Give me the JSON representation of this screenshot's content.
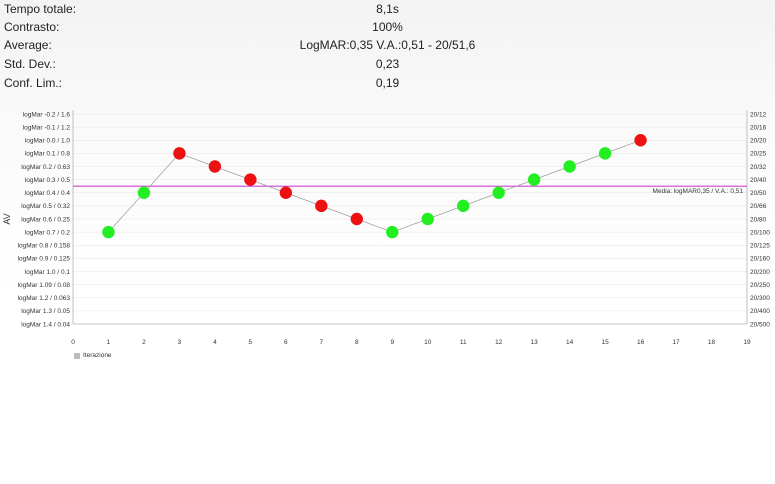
{
  "stats": [
    {
      "label": "Tempo totale:",
      "value": "8,1s"
    },
    {
      "label": "Contrasto:",
      "value": "100%"
    },
    {
      "label": "Average:",
      "value": "LogMAR:0,35  V.A.:0,51  - 20/51,6"
    },
    {
      "label": "Std. Dev.:",
      "value": "0,23"
    },
    {
      "label": "Conf. Lim.:",
      "value": "0,19"
    }
  ],
  "colors": {
    "correct": "#22ee22",
    "wrong": "#ee1111",
    "mean_line": "#cc44cc",
    "connector": "#9e9e9e",
    "grid": "#e4e4e4"
  },
  "chart_data": {
    "type": "scatter",
    "ylabel": "AV",
    "xlim": [
      0,
      19
    ],
    "ylim": [
      -0.2,
      1.4
    ],
    "y_reversed": true,
    "x_ticks": [
      0,
      1,
      2,
      3,
      4,
      5,
      6,
      7,
      8,
      9,
      10,
      11,
      12,
      13,
      14,
      15,
      16,
      17,
      18,
      19
    ],
    "left_ticks": [
      {
        "v": -0.2,
        "label": "logMar -0.2 / 1.6"
      },
      {
        "v": -0.1,
        "label": "logMar -0.1 / 1.2"
      },
      {
        "v": 0.0,
        "label": "logMar 0.0 / 1.0"
      },
      {
        "v": 0.1,
        "label": "logMar 0.1 / 0.8"
      },
      {
        "v": 0.2,
        "label": "logMar 0.2 / 0.63"
      },
      {
        "v": 0.3,
        "label": "logMar 0.3 / 0.5"
      },
      {
        "v": 0.4,
        "label": "logMar 0.4 / 0.4"
      },
      {
        "v": 0.5,
        "label": "logMar 0.5 / 0.32"
      },
      {
        "v": 0.6,
        "label": "logMar 0.6 / 0.25"
      },
      {
        "v": 0.7,
        "label": "logMar 0.7 / 0.2"
      },
      {
        "v": 0.8,
        "label": "logMar 0.8 / 0.158"
      },
      {
        "v": 0.9,
        "label": "logMar 0.9 / 0.125"
      },
      {
        "v": 1.0,
        "label": "logMar 1.0 / 0.1"
      },
      {
        "v": 1.1,
        "label": "logMar 1.09 / 0.08"
      },
      {
        "v": 1.2,
        "label": "logMar 1.2 / 0.063"
      },
      {
        "v": 1.3,
        "label": "logMar 1.3 / 0.05"
      },
      {
        "v": 1.4,
        "label": "logMar 1.4 / 0.04"
      }
    ],
    "right_ticks": [
      {
        "v": -0.2,
        "label": "20/12"
      },
      {
        "v": -0.1,
        "label": "20/16"
      },
      {
        "v": 0.0,
        "label": "20/20"
      },
      {
        "v": 0.1,
        "label": "20/25"
      },
      {
        "v": 0.2,
        "label": "20/32"
      },
      {
        "v": 0.3,
        "label": "20/40"
      },
      {
        "v": 0.4,
        "label": "20/50"
      },
      {
        "v": 0.5,
        "label": "20/66"
      },
      {
        "v": 0.6,
        "label": "20/80"
      },
      {
        "v": 0.7,
        "label": "20/100"
      },
      {
        "v": 0.8,
        "label": "20/125"
      },
      {
        "v": 0.9,
        "label": "20/160"
      },
      {
        "v": 1.0,
        "label": "20/200"
      },
      {
        "v": 1.1,
        "label": "20/250"
      },
      {
        "v": 1.2,
        "label": "20/300"
      },
      {
        "v": 1.3,
        "label": "20/400"
      },
      {
        "v": 1.4,
        "label": "20/500"
      }
    ],
    "points": [
      {
        "x": 1,
        "y": 0.7,
        "correct": true
      },
      {
        "x": 2,
        "y": 0.4,
        "correct": true
      },
      {
        "x": 3,
        "y": 0.1,
        "correct": false
      },
      {
        "x": 4,
        "y": 0.2,
        "correct": false
      },
      {
        "x": 5,
        "y": 0.3,
        "correct": false
      },
      {
        "x": 6,
        "y": 0.4,
        "correct": false
      },
      {
        "x": 7,
        "y": 0.5,
        "correct": false
      },
      {
        "x": 8,
        "y": 0.6,
        "correct": false
      },
      {
        "x": 9,
        "y": 0.7,
        "correct": true
      },
      {
        "x": 10,
        "y": 0.6,
        "correct": true
      },
      {
        "x": 11,
        "y": 0.5,
        "correct": true
      },
      {
        "x": 12,
        "y": 0.4,
        "correct": true
      },
      {
        "x": 13,
        "y": 0.3,
        "correct": true
      },
      {
        "x": 14,
        "y": 0.2,
        "correct": true
      },
      {
        "x": 15,
        "y": 0.1,
        "correct": true
      },
      {
        "x": 16,
        "y": 0.0,
        "correct": false
      }
    ],
    "mean_line": {
      "y": 0.35,
      "label": "Media: logMAR0,35 / V.A.: 0,51"
    },
    "legend": [
      {
        "name": "Iterazione",
        "color": "#bdbdbd"
      }
    ]
  }
}
